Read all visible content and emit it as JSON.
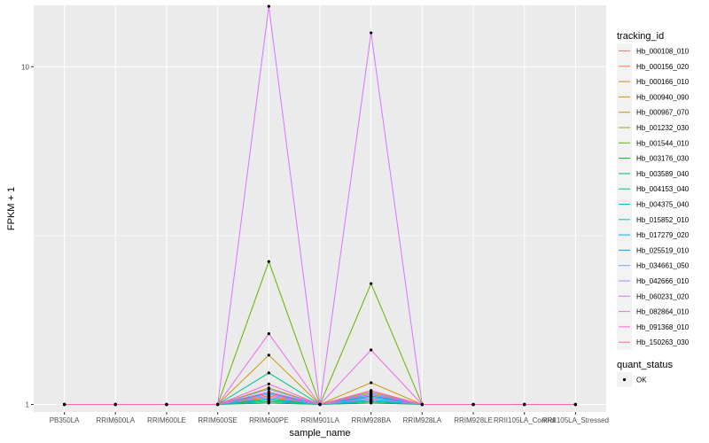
{
  "chart_data": {
    "type": "line",
    "xlabel": "sample_name",
    "ylabel": "FPKM + 1",
    "y_scale": "log10",
    "ylim": [
      0.95,
      15.2
    ],
    "y_ticks": [
      {
        "value": 1,
        "label": "1"
      },
      {
        "value": 10,
        "label": "10"
      }
    ],
    "grid": true,
    "legend_placement": "right",
    "categories": [
      "PB350LA",
      "RRIM600LA",
      "RRIM600LE",
      "RRIM600SE",
      "RRIM600PE",
      "RRIM901LA",
      "RRIM928BA",
      "RRIM928LA",
      "RRIM928LE",
      "RRII105LA_Control",
      "RRII105LA_Stressed"
    ],
    "legend_title": "tracking_id",
    "series": [
      {
        "name": "Hb_000108_010",
        "color": "#F8766D",
        "values": [
          1,
          1,
          1,
          1,
          1.07,
          1,
          1.06,
          1,
          1,
          1,
          1
        ]
      },
      {
        "name": "Hb_000156_020",
        "color": "#EE8044",
        "values": [
          1,
          1,
          1,
          1,
          1.04,
          1,
          1.03,
          1,
          1,
          1,
          1
        ]
      },
      {
        "name": "Hb_000166_010",
        "color": "#DE8C00",
        "values": [
          1,
          1,
          1,
          1,
          1.05,
          1,
          1.04,
          1,
          1,
          1,
          1
        ]
      },
      {
        "name": "Hb_000940_090",
        "color": "#C99800",
        "values": [
          1,
          1,
          1,
          1,
          1.4,
          1,
          1.16,
          1,
          1,
          1,
          1
        ]
      },
      {
        "name": "Hb_000967_070",
        "color": "#AFA100",
        "values": [
          1,
          1,
          1,
          1,
          1.12,
          1,
          1.09,
          1,
          1,
          1,
          1
        ]
      },
      {
        "name": "Hb_001232_030",
        "color": "#8EAB00",
        "values": [
          1,
          1,
          1,
          1,
          1.02,
          1,
          1.02,
          1,
          1,
          1,
          1
        ]
      },
      {
        "name": "Hb_001544_010",
        "color": "#64B200",
        "values": [
          1,
          1,
          1,
          1,
          2.65,
          1,
          2.28,
          1,
          1,
          1,
          1
        ]
      },
      {
        "name": "Hb_003176_030",
        "color": "#00B81B",
        "values": [
          1,
          1,
          1,
          1,
          1.01,
          1,
          1.01,
          1,
          1,
          1,
          1
        ]
      },
      {
        "name": "Hb_003589_040",
        "color": "#00BD5C",
        "values": [
          1,
          1,
          1,
          1,
          1.03,
          1,
          1.02,
          1,
          1,
          1,
          1
        ]
      },
      {
        "name": "Hb_004153_040",
        "color": "#00C08E",
        "values": [
          1,
          1,
          1,
          1,
          1.24,
          1,
          1.07,
          1,
          1,
          1,
          1
        ]
      },
      {
        "name": "Hb_004375_040",
        "color": "#00C1B2",
        "values": [
          1,
          1,
          1,
          1,
          1.02,
          1,
          1.02,
          1,
          1,
          1,
          1
        ]
      },
      {
        "name": "Hb_015852_010",
        "color": "#00BCD6",
        "values": [
          1,
          1,
          1,
          1,
          1.06,
          1,
          1.05,
          1,
          1,
          1,
          1
        ]
      },
      {
        "name": "Hb_017279_020",
        "color": "#00B3F2",
        "values": [
          1,
          1,
          1,
          1,
          1.04,
          1,
          1.03,
          1,
          1,
          1,
          1
        ]
      },
      {
        "name": "Hb_025519_010",
        "color": "#00A6FF",
        "values": [
          1,
          1,
          1,
          1,
          1.08,
          1,
          1.06,
          1,
          1,
          1,
          1
        ]
      },
      {
        "name": "Hb_034661_050",
        "color": "#7997FF",
        "values": [
          1,
          1,
          1,
          1,
          1.11,
          1,
          1.08,
          1,
          1,
          1,
          1
        ]
      },
      {
        "name": "Hb_042666_010",
        "color": "#B385FF",
        "values": [
          1,
          1,
          1,
          1,
          1.06,
          1,
          1.04,
          1,
          1,
          1,
          1
        ]
      },
      {
        "name": "Hb_060231_020",
        "color": "#D874FD",
        "values": [
          1,
          1,
          1,
          1,
          15.1,
          1,
          12.6,
          1,
          1,
          1,
          1
        ]
      },
      {
        "name": "Hb_082864_010",
        "color": "#EF67EB",
        "values": [
          1,
          1,
          1,
          1,
          1.62,
          1,
          1.45,
          1,
          1,
          1,
          1
        ]
      },
      {
        "name": "Hb_091368_010",
        "color": "#FD61D3",
        "values": [
          1,
          1,
          1,
          1,
          1.15,
          1,
          1.1,
          1,
          1,
          1,
          1
        ]
      },
      {
        "name": "Hb_150263_030",
        "color": "#FF63B6",
        "values": [
          1,
          1,
          1,
          1,
          1.09,
          1,
          1.07,
          1,
          1,
          1,
          1
        ]
      }
    ],
    "legend2": {
      "title": "quant_status",
      "items": [
        "OK"
      ]
    },
    "colors": {
      "panel": "#EBEBEB",
      "grid": "#FFFFFF",
      "point": "#000000"
    }
  }
}
